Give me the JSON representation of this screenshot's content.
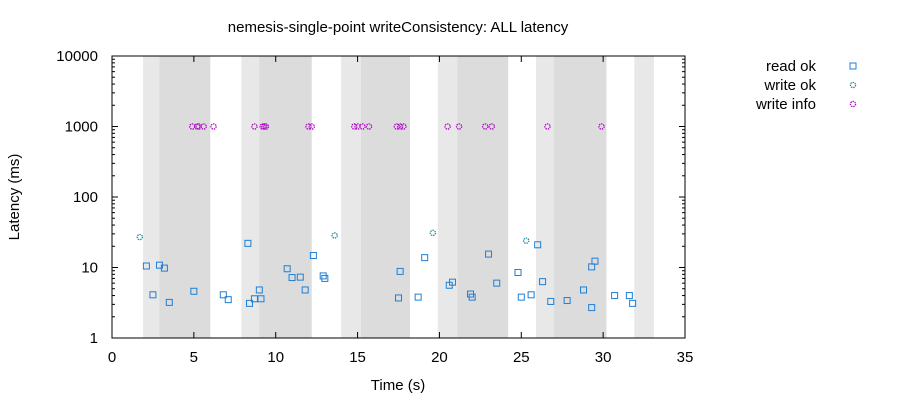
{
  "chart_data": {
    "type": "scatter",
    "title": "nemesis-single-point writeConsistency: ALL latency",
    "xlabel": "Time (s)",
    "ylabel": "Latency (ms)",
    "xlim": [
      0,
      35
    ],
    "ylim": [
      1,
      10000
    ],
    "yscale": "log",
    "grid": false,
    "legend_position": "top-right outside",
    "x_ticks": [
      0,
      5,
      10,
      15,
      20,
      25,
      30,
      35
    ],
    "x_tick_labels": [
      "0",
      "5",
      "10",
      "15",
      "20",
      "25",
      "30",
      "35"
    ],
    "y_ticks": [
      1,
      10,
      100,
      1000,
      10000
    ],
    "y_tick_labels": [
      "1",
      "10",
      "100",
      "1000",
      "10000"
    ],
    "nemesis_bands": {
      "light_color": "#e8e8e8",
      "dark_color": "#dcdcdc",
      "light": [
        [
          1.9,
          6.0
        ],
        [
          7.9,
          10.6
        ],
        [
          14.0,
          15.2
        ],
        [
          19.9,
          21.1
        ],
        [
          25.9,
          27.0
        ],
        [
          31.9,
          33.1
        ]
      ],
      "dark": [
        [
          2.9,
          6.0
        ],
        [
          9.0,
          12.2
        ],
        [
          15.2,
          18.2
        ],
        [
          21.1,
          24.2
        ],
        [
          27.0,
          30.2
        ]
      ]
    },
    "series": [
      {
        "name": "read ok",
        "marker": "square",
        "color": "#1f7fd6",
        "points": [
          [
            2.1,
            10.5
          ],
          [
            2.5,
            4.1
          ],
          [
            2.9,
            10.8
          ],
          [
            3.2,
            9.8
          ],
          [
            3.5,
            3.2
          ],
          [
            5.0,
            4.6
          ],
          [
            6.8,
            4.1
          ],
          [
            7.1,
            3.5
          ],
          [
            8.3,
            22.0
          ],
          [
            8.4,
            3.1
          ],
          [
            8.7,
            3.6
          ],
          [
            9.0,
            4.8
          ],
          [
            9.1,
            3.6
          ],
          [
            10.7,
            9.6
          ],
          [
            11.0,
            7.2
          ],
          [
            11.5,
            7.3
          ],
          [
            11.8,
            4.8
          ],
          [
            12.3,
            14.8
          ],
          [
            12.9,
            7.6
          ],
          [
            13.0,
            7.0
          ],
          [
            17.5,
            3.7
          ],
          [
            17.6,
            8.8
          ],
          [
            18.7,
            3.8
          ],
          [
            19.1,
            13.8
          ],
          [
            20.6,
            5.6
          ],
          [
            20.8,
            6.2
          ],
          [
            21.9,
            4.2
          ],
          [
            22.0,
            3.8
          ],
          [
            23.0,
            15.5
          ],
          [
            23.5,
            6.0
          ],
          [
            24.8,
            8.5
          ],
          [
            25.0,
            3.8
          ],
          [
            25.6,
            4.1
          ],
          [
            26.0,
            21.0
          ],
          [
            26.3,
            6.3
          ],
          [
            26.8,
            3.3
          ],
          [
            27.8,
            3.4
          ],
          [
            28.8,
            4.8
          ],
          [
            29.3,
            10.2
          ],
          [
            29.5,
            12.3
          ],
          [
            29.3,
            2.7
          ],
          [
            30.7,
            4.0
          ],
          [
            31.6,
            4.0
          ],
          [
            31.8,
            3.1
          ]
        ]
      },
      {
        "name": "write ok",
        "marker": "circle",
        "color": "#1a8b9d",
        "points": [
          [
            1.7,
            27.0
          ],
          [
            13.6,
            28.5
          ],
          [
            19.6,
            31.0
          ],
          [
            25.3,
            24.0
          ]
        ]
      },
      {
        "name": "write info",
        "marker": "circle",
        "color": "#b000c8",
        "points": [
          [
            4.9,
            1000
          ],
          [
            5.2,
            1000
          ],
          [
            5.3,
            1000
          ],
          [
            5.6,
            1000
          ],
          [
            6.2,
            1000
          ],
          [
            8.7,
            1000
          ],
          [
            9.2,
            1000
          ],
          [
            9.3,
            1000
          ],
          [
            9.4,
            1000
          ],
          [
            12.0,
            1000
          ],
          [
            12.2,
            1000
          ],
          [
            14.8,
            1000
          ],
          [
            15.0,
            1000
          ],
          [
            15.3,
            1000
          ],
          [
            15.7,
            1000
          ],
          [
            17.4,
            1000
          ],
          [
            17.6,
            1000
          ],
          [
            17.8,
            1000
          ],
          [
            20.5,
            1000
          ],
          [
            21.2,
            1000
          ],
          [
            22.8,
            1000
          ],
          [
            23.2,
            1000
          ],
          [
            26.6,
            1000
          ],
          [
            29.9,
            1000
          ]
        ]
      }
    ]
  }
}
